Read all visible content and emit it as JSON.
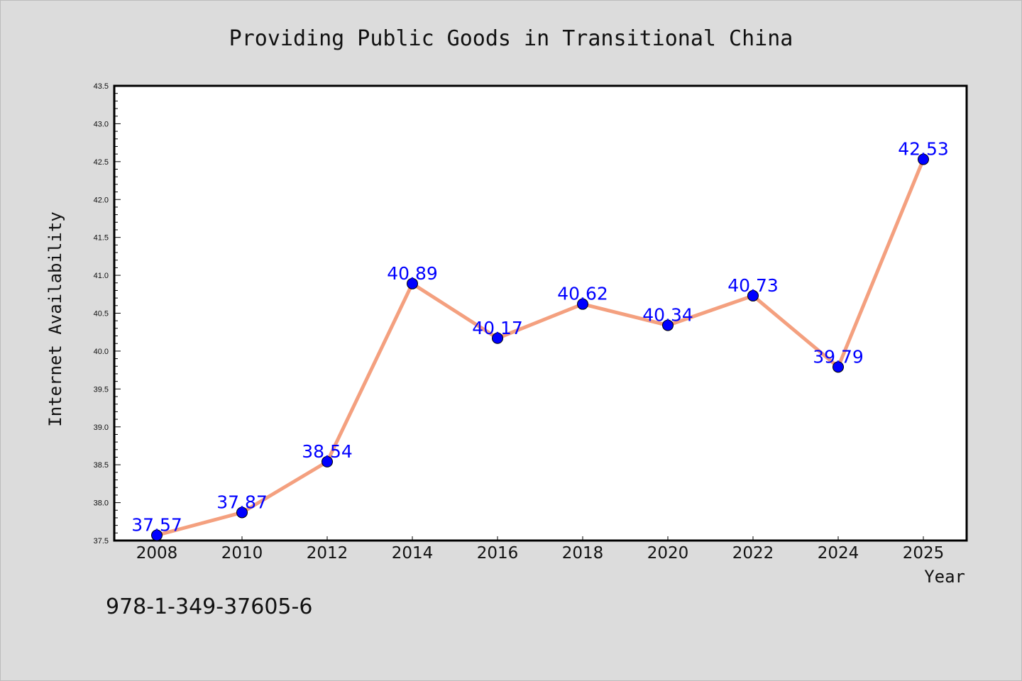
{
  "chart_data": {
    "type": "line",
    "title": "Providing Public Goods in Transitional China",
    "xlabel": "Year",
    "ylabel": "Internet Availability",
    "categories": [
      "2008",
      "2010",
      "2012",
      "2014",
      "2016",
      "2018",
      "2020",
      "2022",
      "2024",
      "2025"
    ],
    "series": [
      {
        "values": [
          37.57,
          37.87,
          38.54,
          40.89,
          40.17,
          40.62,
          40.34,
          40.73,
          39.79,
          42.53
        ]
      }
    ],
    "data_labels": [
      "37.57",
      "37.87",
      "38.54",
      "40.89",
      "40.17",
      "40.62",
      "40.34",
      "40.73",
      "39.79",
      "42.53"
    ],
    "ylim": [
      37.5,
      43.5
    ],
    "yticks": [
      "37.5",
      "38.0",
      "38.5",
      "39.0",
      "39.5",
      "40.0",
      "40.5",
      "41.0",
      "41.5",
      "42.0",
      "42.5",
      "43.0",
      "43.5"
    ],
    "grid": false,
    "legend": "none",
    "colors": {
      "line": "#f4a07f",
      "marker": "#0000ff",
      "label": "#0000ff",
      "background": "#dcdcdc",
      "plot_background": "#ffffff"
    }
  },
  "footnote": "978-1-349-37605-6"
}
